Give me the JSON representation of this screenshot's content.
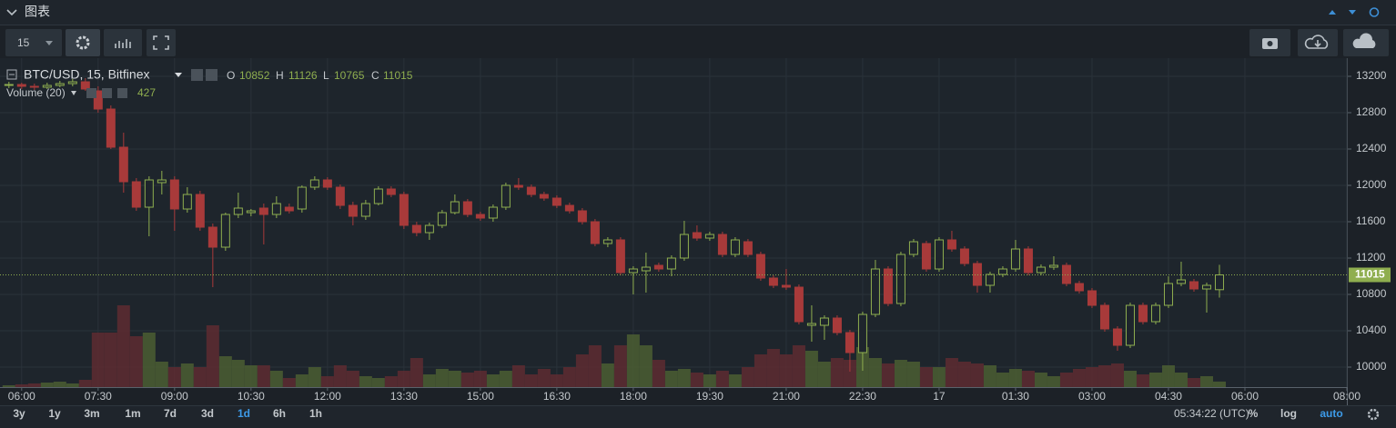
{
  "header": {
    "title": "图表"
  },
  "toolbar": {
    "interval": "15"
  },
  "legend": {
    "o": "O",
    "h": "H",
    "l": "L",
    "c": "C"
  },
  "chart_data": {
    "type": "candlestick",
    "name": "BTC/USD, 15, Bitfinex",
    "volume_name": "Volume (20)",
    "candles": [
      [
        13100,
        13140,
        13070,
        13110
      ],
      [
        13110,
        13130,
        13060,
        13090
      ],
      [
        13090,
        13120,
        13050,
        13080
      ],
      [
        13080,
        13130,
        13060,
        13100
      ],
      [
        13100,
        13150,
        13080,
        13120
      ],
      [
        13120,
        13170,
        13090,
        13140
      ],
      [
        13140,
        13180,
        13040,
        13060
      ],
      [
        13040,
        13090,
        12800,
        12840
      ],
      [
        12840,
        12880,
        12400,
        12420
      ],
      [
        12420,
        12580,
        11920,
        12040
      ],
      [
        12040,
        12080,
        11720,
        11760
      ],
      [
        11760,
        12100,
        11440,
        12060
      ],
      [
        12030,
        12160,
        11900,
        12060
      ],
      [
        12060,
        12100,
        11500,
        11740
      ],
      [
        11740,
        11980,
        11700,
        11900
      ],
      [
        11900,
        11940,
        11500,
        11540
      ],
      [
        11540,
        11580,
        10880,
        11320
      ],
      [
        11320,
        11700,
        11280,
        11680
      ],
      [
        11680,
        11920,
        11640,
        11750
      ],
      [
        11700,
        11740,
        11660,
        11720
      ],
      [
        11750,
        11800,
        11350,
        11680
      ],
      [
        11680,
        11880,
        11640,
        11800
      ],
      [
        11760,
        11800,
        11690,
        11720
      ],
      [
        11740,
        12000,
        11700,
        11980
      ],
      [
        11980,
        12100,
        11950,
        12060
      ],
      [
        12060,
        12090,
        11950,
        11980
      ],
      [
        11980,
        12010,
        11740,
        11780
      ],
      [
        11780,
        11820,
        11560,
        11660
      ],
      [
        11660,
        11840,
        11620,
        11800
      ],
      [
        11800,
        11990,
        11780,
        11960
      ],
      [
        11960,
        11990,
        11870,
        11900
      ],
      [
        11900,
        11930,
        11520,
        11560
      ],
      [
        11560,
        11600,
        11440,
        11480
      ],
      [
        11480,
        11590,
        11400,
        11560
      ],
      [
        11560,
        11730,
        11530,
        11700
      ],
      [
        11700,
        11900,
        11680,
        11820
      ],
      [
        11820,
        11850,
        11650,
        11680
      ],
      [
        11680,
        11710,
        11610,
        11640
      ],
      [
        11640,
        11790,
        11600,
        11760
      ],
      [
        11760,
        12030,
        11730,
        12000
      ],
      [
        12000,
        12080,
        11950,
        11980
      ],
      [
        11980,
        12010,
        11870,
        11900
      ],
      [
        11900,
        11930,
        11830,
        11860
      ],
      [
        11860,
        11890,
        11750,
        11780
      ],
      [
        11780,
        11810,
        11690,
        11720
      ],
      [
        11720,
        11750,
        11570,
        11600
      ],
      [
        11600,
        11630,
        11330,
        11360
      ],
      [
        11360,
        11430,
        11320,
        11400
      ],
      [
        11400,
        11430,
        11010,
        11040
      ],
      [
        11040,
        11110,
        10800,
        11080
      ],
      [
        11060,
        11260,
        10820,
        11100
      ],
      [
        11120,
        11150,
        11050,
        11080
      ],
      [
        11080,
        11230,
        11000,
        11200
      ],
      [
        11200,
        11610,
        11170,
        11460
      ],
      [
        11480,
        11560,
        11390,
        11420
      ],
      [
        11420,
        11490,
        11390,
        11460
      ],
      [
        11460,
        11490,
        11210,
        11240
      ],
      [
        11240,
        11430,
        11210,
        11400
      ],
      [
        11380,
        11410,
        11210,
        11240
      ],
      [
        11240,
        11270,
        10950,
        10980
      ],
      [
        10980,
        11010,
        10870,
        10900
      ],
      [
        10900,
        11080,
        10850,
        10880
      ],
      [
        10880,
        10910,
        10470,
        10500
      ],
      [
        10460,
        10680,
        10280,
        10480
      ],
      [
        10460,
        10570,
        10300,
        10540
      ],
      [
        10540,
        10570,
        10350,
        10380
      ],
      [
        10380,
        10410,
        9950,
        10160
      ],
      [
        10160,
        10610,
        9960,
        10580
      ],
      [
        10580,
        11180,
        10550,
        11080
      ],
      [
        11080,
        11110,
        10670,
        10700
      ],
      [
        10700,
        11270,
        10670,
        11240
      ],
      [
        11240,
        11410,
        11210,
        11380
      ],
      [
        11360,
        11390,
        11050,
        11080
      ],
      [
        11080,
        11430,
        11050,
        11400
      ],
      [
        11400,
        11500,
        11270,
        11300
      ],
      [
        11300,
        11330,
        11110,
        11140
      ],
      [
        11140,
        11170,
        10820,
        10900
      ],
      [
        10900,
        11050,
        10820,
        11020
      ],
      [
        11020,
        11110,
        10990,
        11080
      ],
      [
        11080,
        11400,
        11050,
        11300
      ],
      [
        11300,
        11330,
        11010,
        11040
      ],
      [
        11040,
        11130,
        11010,
        11100
      ],
      [
        11100,
        11220,
        11070,
        11120
      ],
      [
        11120,
        11150,
        10890,
        10920
      ],
      [
        10920,
        10950,
        10810,
        10840
      ],
      [
        10840,
        10870,
        10650,
        10680
      ],
      [
        10680,
        10710,
        10390,
        10420
      ],
      [
        10420,
        10450,
        10180,
        10240
      ],
      [
        10240,
        10710,
        10210,
        10680
      ],
      [
        10680,
        10710,
        10470,
        10500
      ],
      [
        10500,
        10710,
        10470,
        10680
      ],
      [
        10680,
        11000,
        10650,
        10920
      ],
      [
        10920,
        11160,
        10890,
        10960
      ],
      [
        10940,
        10970,
        10830,
        10860
      ],
      [
        10860,
        10930,
        10600,
        10900
      ],
      [
        10852,
        11126,
        10765,
        11015
      ]
    ],
    "volume": [
      140,
      210,
      280,
      350,
      420,
      280,
      560,
      4200,
      4200,
      6300,
      3920,
      4200,
      1960,
      1540,
      1820,
      1540,
      4760,
      2380,
      2100,
      1680,
      1680,
      1260,
      700,
      980,
      1540,
      840,
      1680,
      1260,
      840,
      700,
      840,
      1260,
      2240,
      980,
      1400,
      1260,
      1120,
      1260,
      980,
      1260,
      1680,
      980,
      1400,
      980,
      1540,
      2520,
      3220,
      1820,
      3220,
      4060,
      3220,
      2100,
      1260,
      1400,
      1120,
      980,
      1260,
      980,
      1540,
      2520,
      2940,
      2520,
      3220,
      2800,
      1960,
      2240,
      2100,
      3080,
      2240,
      1820,
      2100,
      1960,
      1540,
      1540,
      2240,
      1960,
      1820,
      1680,
      1120,
      1400,
      1260,
      1120,
      840,
      1120,
      1400,
      1540,
      1680,
      1820,
      1260,
      980,
      1120,
      1680,
      1120,
      700,
      840,
      427
    ],
    "ylim": [
      9780,
      13380
    ],
    "yticks": [
      10000,
      10400,
      10800,
      11200,
      11600,
      12000,
      12400,
      12800,
      13200
    ],
    "xlim": [
      -0.7,
      105
    ],
    "xticks": [
      {
        "value": 1,
        "label": "06:00"
      },
      {
        "value": 7,
        "label": "07:30"
      },
      {
        "value": 13,
        "label": "09:00"
      },
      {
        "value": 19,
        "label": "10:30"
      },
      {
        "value": 25,
        "label": "12:00"
      },
      {
        "value": 31,
        "label": "13:30"
      },
      {
        "value": 37,
        "label": "15:00"
      },
      {
        "value": 43,
        "label": "16:30"
      },
      {
        "value": 49,
        "label": "18:00"
      },
      {
        "value": 55,
        "label": "19:30"
      },
      {
        "value": 61,
        "label": "21:00"
      },
      {
        "value": 67,
        "label": "22:30"
      },
      {
        "value": 73,
        "label": "17"
      },
      {
        "value": 79,
        "label": "01:30"
      },
      {
        "value": 85,
        "label": "03:00"
      },
      {
        "value": 91,
        "label": "04:30"
      },
      {
        "value": 97,
        "label": "06:00"
      },
      {
        "value": 105,
        "label": "08:00"
      }
    ],
    "grid": true,
    "colors": {
      "up": "#8fae4f",
      "down": "#a83a3a",
      "up_volume": "#4b5e33",
      "down_volume": "#5e2c31"
    }
  },
  "ranges": [
    "3y",
    "1y",
    "3m",
    "1m",
    "7d",
    "3d",
    "1d",
    "6h",
    "1h"
  ],
  "active_range_index": 6,
  "clock": "05:34:22 (UTC)",
  "scale_buttons": [
    "%",
    "log",
    "auto"
  ],
  "active_scale_index": 2
}
